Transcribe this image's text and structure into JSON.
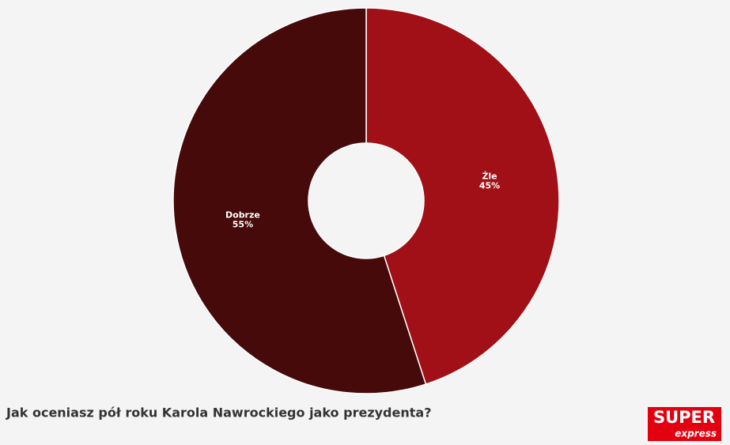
{
  "chart_data": {
    "type": "donut",
    "title": "Jak oceniasz pół roku Karola Nawrockiego jako prezydenta?",
    "categories": [
      "Źle",
      "Dobrze"
    ],
    "values": [
      45,
      55
    ],
    "value_labels": [
      "45%",
      "55%"
    ],
    "colors": [
      "#a11016",
      "#470a0a"
    ]
  },
  "logo": {
    "line1": "SUPER",
    "line2": "express"
  }
}
